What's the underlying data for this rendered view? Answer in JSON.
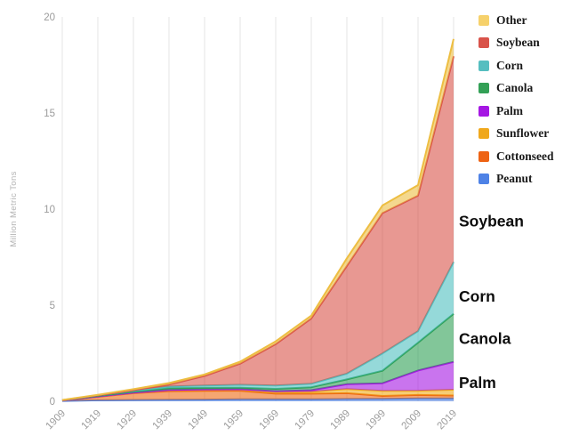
{
  "page": {
    "background": "#ffffff"
  },
  "legend": {
    "items": [
      {
        "label": "Other",
        "color": "#F6D16B"
      },
      {
        "label": "Soybean",
        "color": "#D9534A"
      },
      {
        "label": "Corn",
        "color": "#55BEC0"
      },
      {
        "label": "Canola",
        "color": "#33A056"
      },
      {
        "label": "Palm",
        "color": "#A517E3"
      },
      {
        "label": "Sunflower",
        "color": "#F0A81C"
      },
      {
        "label": "Cottonseed",
        "color": "#EE6313"
      },
      {
        "label": "Peanut",
        "color": "#4E82E6"
      }
    ]
  },
  "chart_data": {
    "type": "area",
    "stacked": true,
    "title": "",
    "xlabel": "",
    "ylabel": "Million Metric Tons",
    "ylim": [
      0,
      20
    ],
    "yticks": [
      0,
      5,
      10,
      15,
      20
    ],
    "grid": "vertical",
    "legend_position": "top-right",
    "categories": [
      "1909",
      "1919",
      "1929",
      "1939",
      "1949",
      "1959",
      "1969",
      "1979",
      "1989",
      "1999",
      "2009",
      "2019"
    ],
    "series": [
      {
        "name": "Peanut",
        "color": "#4F7FDE",
        "values": [
          0.02,
          0.05,
          0.07,
          0.08,
          0.09,
          0.1,
          0.1,
          0.1,
          0.12,
          0.13,
          0.15,
          0.15
        ]
      },
      {
        "name": "Cottonseed",
        "color": "#EE6A13",
        "values": [
          0.02,
          0.18,
          0.35,
          0.45,
          0.45,
          0.45,
          0.3,
          0.3,
          0.3,
          0.15,
          0.18,
          0.15
        ]
      },
      {
        "name": "Sunflower",
        "color": "#F0AC1B",
        "values": [
          0.0,
          0.02,
          0.03,
          0.06,
          0.08,
          0.08,
          0.08,
          0.1,
          0.22,
          0.26,
          0.22,
          0.3
        ]
      },
      {
        "name": "Palm",
        "color": "#A517E3",
        "values": [
          0.0,
          0.0,
          0.0,
          0.0,
          0.0,
          0.0,
          0.05,
          0.08,
          0.25,
          0.4,
          1.05,
          1.45
        ]
      },
      {
        "name": "Canola",
        "color": "#2FA055",
        "values": [
          0.01,
          0.03,
          0.05,
          0.09,
          0.08,
          0.08,
          0.12,
          0.15,
          0.25,
          0.65,
          1.45,
          2.5
        ]
      },
      {
        "name": "Corn",
        "color": "#4FBFC0",
        "values": [
          0.01,
          0.03,
          0.06,
          0.09,
          0.12,
          0.15,
          0.17,
          0.18,
          0.3,
          0.9,
          0.6,
          2.7
        ]
      },
      {
        "name": "Soybean",
        "color": "#D9534A",
        "values": [
          0.0,
          0.0,
          0.02,
          0.1,
          0.5,
          1.1,
          2.15,
          3.4,
          5.6,
          7.3,
          7.05,
          10.7
        ]
      },
      {
        "name": "Other",
        "color": "#EDBE42",
        "values": [
          0.01,
          0.03,
          0.05,
          0.08,
          0.08,
          0.1,
          0.15,
          0.15,
          0.4,
          0.4,
          0.55,
          0.9
        ]
      }
    ],
    "annotations": [
      {
        "label": "Soybean",
        "at_value": 9.3
      },
      {
        "label": "Corn",
        "at_value": 5.4
      },
      {
        "label": "Canola",
        "at_value": 3.2
      },
      {
        "label": "Palm",
        "at_value": 0.9
      }
    ]
  }
}
